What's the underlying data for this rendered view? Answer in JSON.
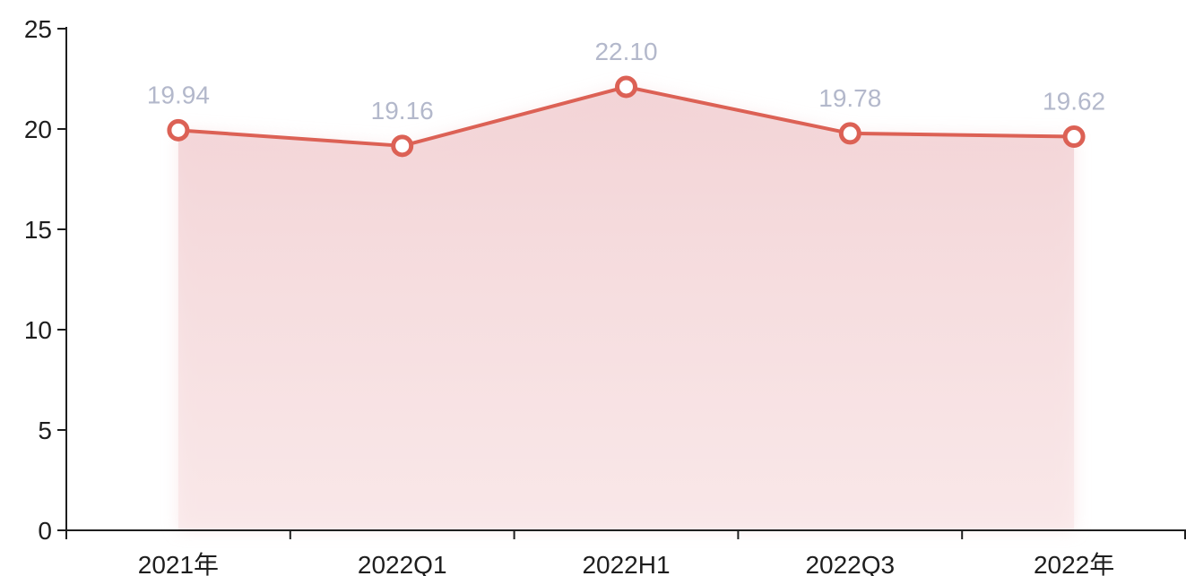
{
  "chart_data": {
    "type": "area",
    "categories": [
      "2021年",
      "2022Q1",
      "2022H1",
      "2022Q3",
      "2022年"
    ],
    "series": [
      {
        "values": [
          19.94,
          19.16,
          22.1,
          19.78,
          19.62
        ]
      }
    ],
    "data_labels": [
      "19.94",
      "19.16",
      "22.10",
      "19.78",
      "19.62"
    ],
    "ylim": [
      0,
      25
    ],
    "yticks": [
      0,
      5,
      10,
      15,
      20,
      25
    ],
    "grid": false,
    "xlabel": "",
    "ylabel": "",
    "colors": {
      "line": "#dc6155",
      "fill": "#f3d3d5",
      "marker_fill": "#ffffff",
      "data_label": "#b3b8cb",
      "axis": "#1e1e1e"
    }
  }
}
